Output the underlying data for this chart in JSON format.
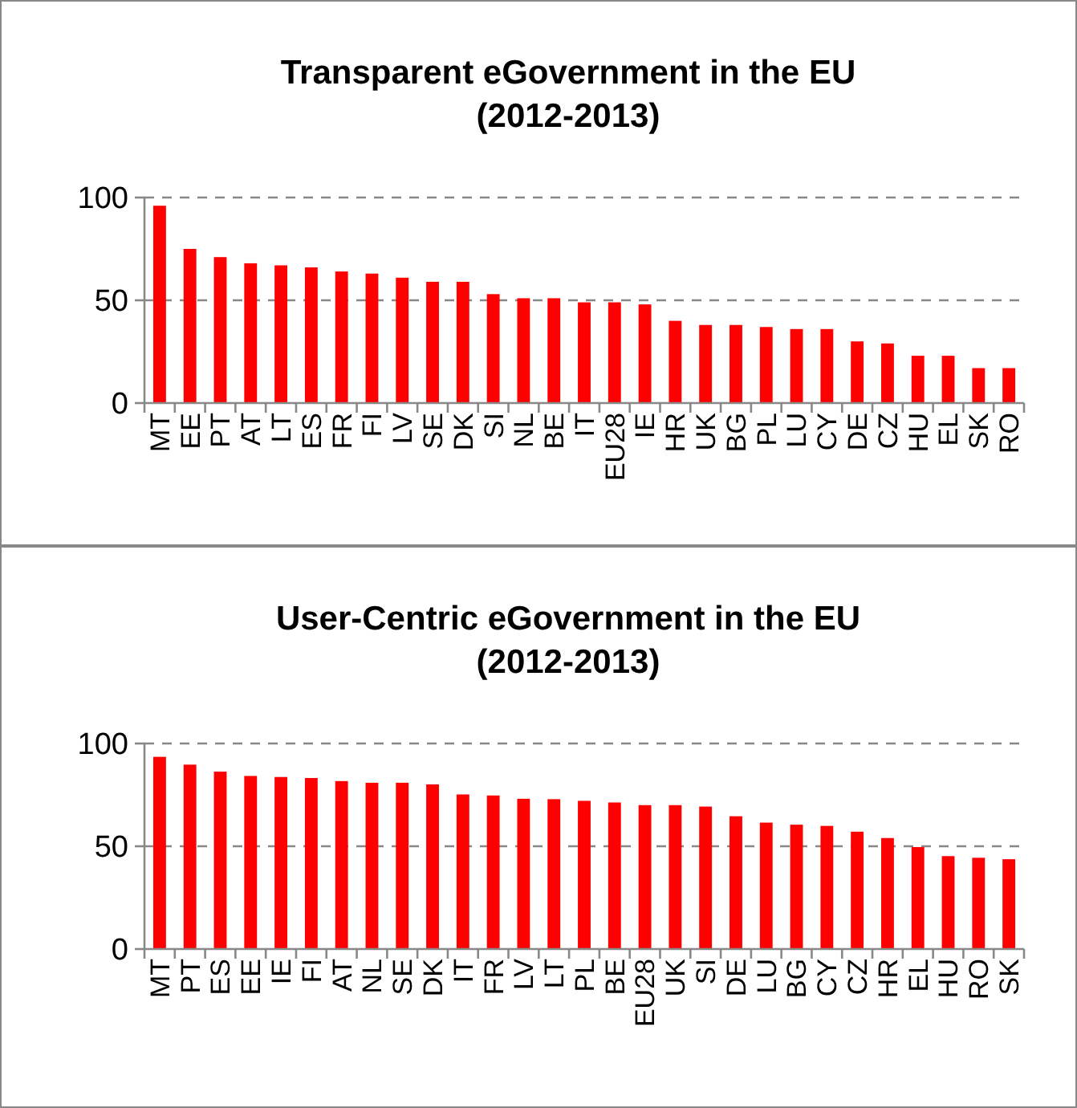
{
  "chart_data": [
    {
      "type": "bar",
      "title": "Transparent eGovernment in the EU\n(2012-2013)",
      "categories": [
        "MT",
        "EE",
        "PT",
        "AT",
        "LT",
        "ES",
        "FR",
        "FI",
        "LV",
        "SE",
        "DK",
        "SI",
        "NL",
        "BE",
        "IT",
        "EU28",
        "IE",
        "HR",
        "UK",
        "BG",
        "PL",
        "LU",
        "CY",
        "DE",
        "CZ",
        "HU",
        "EL",
        "SK",
        "RO"
      ],
      "values": [
        96,
        75,
        71,
        68,
        67,
        66,
        64,
        63,
        61,
        59,
        59,
        53,
        51,
        51,
        49,
        49,
        48,
        40,
        38,
        38,
        37,
        36,
        36,
        30,
        29,
        23,
        23,
        17,
        17
      ],
      "color": "#ff0000",
      "ylim": [
        0,
        100
      ],
      "yticks": [
        0,
        50,
        100
      ],
      "grid": "y"
    },
    {
      "type": "bar",
      "title": "User-Centric eGovernment in the EU\n(2012-2013)",
      "categories": [
        "MT",
        "PT",
        "ES",
        "EE",
        "IE",
        "FI",
        "AT",
        "NL",
        "SE",
        "DK",
        "IT",
        "FR",
        "LV",
        "LT",
        "PL",
        "BE",
        "EU28",
        "UK",
        "SI",
        "DE",
        "LU",
        "BG",
        "CY",
        "CZ",
        "HR",
        "EL",
        "HU",
        "RO",
        "SK"
      ],
      "values": [
        93.5,
        89.7,
        86.3,
        84.2,
        83.7,
        83.2,
        81.7,
        80.9,
        80.9,
        80.1,
        75.2,
        74.7,
        73.1,
        72.9,
        72.1,
        71.3,
        70,
        70,
        69.3,
        64.6,
        61.5,
        60.5,
        59.9,
        57.1,
        54,
        49.6,
        45.2,
        44.4,
        43.7
      ],
      "color": "#ff0000",
      "ylim": [
        0,
        100
      ],
      "yticks": [
        0,
        50,
        100
      ],
      "grid": "y"
    }
  ]
}
